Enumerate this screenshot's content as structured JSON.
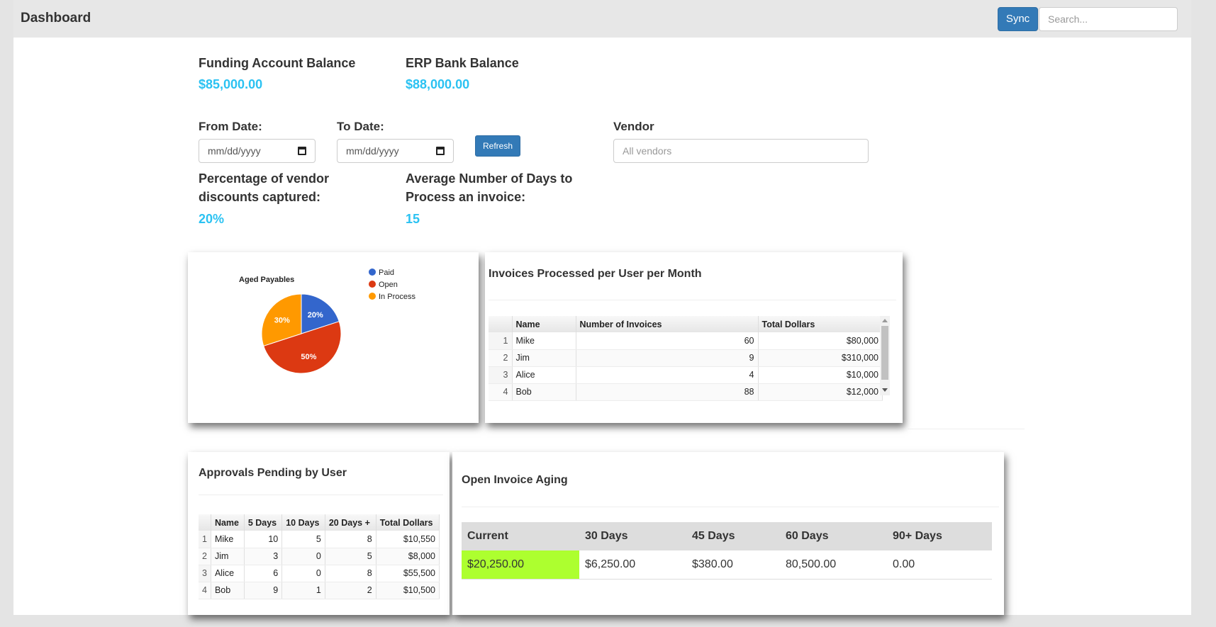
{
  "header": {
    "title": "Dashboard",
    "sync_label": "Sync",
    "search_placeholder": "Search..."
  },
  "balances": {
    "funding_label": "Funding Account Balance",
    "funding_value": "$85,000.00",
    "erp_label": "ERP Bank Balance",
    "erp_value": "$88,000.00"
  },
  "filters": {
    "from_label": "From Date:",
    "from_placeholder": "mm/dd/yyyy",
    "to_label": "To Date:",
    "to_placeholder": "mm/dd/yyyy",
    "refresh_label": "Refresh",
    "vendor_label": "Vendor",
    "vendor_placeholder": "All vendors"
  },
  "metrics": {
    "discount_label_1": "Percentage of vendor",
    "discount_label_2": "discounts captured:",
    "discount_value": "20%",
    "days_label_1": "Average Number of Days to",
    "days_label_2": "Process an invoice:",
    "days_value": "15"
  },
  "chart_data": {
    "type": "pie",
    "title": "Aged Payables",
    "categories": [
      "Paid",
      "Open",
      "In Process"
    ],
    "values": [
      20,
      50,
      30
    ],
    "labels": [
      "20%",
      "50%",
      "30%"
    ],
    "colors": [
      "#3366cc",
      "#dc3912",
      "#ff9900"
    ],
    "legend": "right"
  },
  "invoices_per_user": {
    "title": "Invoices Processed per User per Month",
    "columns": [
      "Name",
      "Number of Invoices",
      "Total Dollars"
    ],
    "rows": [
      {
        "idx": "1",
        "name": "Mike",
        "count": "60",
        "total": "$80,000"
      },
      {
        "idx": "2",
        "name": "Jim",
        "count": "9",
        "total": "$310,000"
      },
      {
        "idx": "3",
        "name": "Alice",
        "count": "4",
        "total": "$10,000"
      },
      {
        "idx": "4",
        "name": "Bob",
        "count": "88",
        "total": "$12,000"
      }
    ]
  },
  "approvals": {
    "title": "Approvals Pending by User",
    "columns": [
      "Name",
      "5 Days",
      "10 Days",
      "20 Days +",
      "Total Dollars"
    ],
    "rows": [
      {
        "idx": "1",
        "name": "Mike",
        "d5": "10",
        "d10": "5",
        "d20": "8",
        "total": "$10,550"
      },
      {
        "idx": "2",
        "name": "Jim",
        "d5": "3",
        "d10": "0",
        "d20": "5",
        "total": "$8,000"
      },
      {
        "idx": "3",
        "name": "Alice",
        "d5": "6",
        "d10": "0",
        "d20": "8",
        "total": "$55,500"
      },
      {
        "idx": "4",
        "name": "Bob",
        "d5": "9",
        "d10": "1",
        "d20": "2",
        "total": "$10,500"
      }
    ]
  },
  "aging": {
    "title": "Open Invoice Aging",
    "columns": [
      "Current",
      "30 Days",
      "45 Days",
      "60 Days",
      "90+ Days"
    ],
    "values": [
      "$20,250.00",
      "$6,250.00",
      "$380.00",
      "80,500.00",
      "0.00"
    ],
    "highlight_color": "#adff2f"
  }
}
